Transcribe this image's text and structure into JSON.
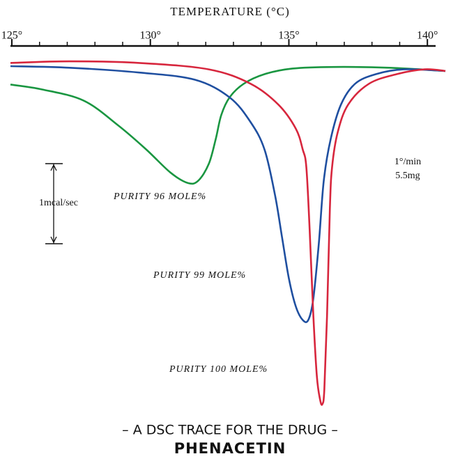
{
  "chart_data": {
    "type": "line",
    "title": "TEMPERATURE (°C)",
    "subtitle": "– A DSC TRACE FOR THE DRUG –",
    "drug": "PHENACETIN",
    "conditions": [
      "1°/min",
      "5.5mg"
    ],
    "scale_bar": {
      "label": "1mcal/sec",
      "value": 1
    },
    "xlim": [
      124.95,
      140.8
    ],
    "ylim": [
      -4.4,
      0.2
    ],
    "xticks": [
      {
        "value": 125,
        "label": "125°"
      },
      {
        "value": 130,
        "label": "130°"
      },
      {
        "value": 135,
        "label": "135°"
      },
      {
        "value": 140,
        "label": "140°"
      }
    ],
    "xminorticks": [
      126,
      127,
      128,
      129,
      131,
      132,
      133,
      134,
      136,
      137,
      138,
      139
    ],
    "series": [
      {
        "name": "PURITY 96 MOLE%",
        "color": "#1a9641",
        "x": [
          124.95,
          126.08,
          127.59,
          128.84,
          129.85,
          130.73,
          131.36,
          131.73,
          132.11,
          132.36,
          132.56,
          132.86,
          133.37,
          134.12,
          135.13,
          136.63,
          138.64,
          140.65
        ],
        "values": [
          -0.23,
          -0.29,
          -0.43,
          -0.74,
          -1.04,
          -1.33,
          -1.46,
          -1.43,
          -1.22,
          -0.91,
          -0.61,
          -0.39,
          -0.22,
          -0.1,
          -0.03,
          -0.01,
          -0.02,
          -0.06
        ]
      },
      {
        "name": "PURITY 99 MOLE%",
        "color": "#1f4fa0",
        "x": [
          124.95,
          127.09,
          129.6,
          131.61,
          132.86,
          133.62,
          134.12,
          134.5,
          134.75,
          135.0,
          135.25,
          135.5,
          135.7,
          135.88,
          136.08,
          136.26,
          136.51,
          136.88,
          137.39,
          138.14,
          139.15,
          140.65
        ],
        "values": [
          0,
          -0.02,
          -0.08,
          -0.17,
          -0.39,
          -0.7,
          -1.04,
          -1.61,
          -2.13,
          -2.65,
          -3.0,
          -3.17,
          -3.17,
          -2.91,
          -2.22,
          -1.43,
          -0.91,
          -0.48,
          -0.22,
          -0.1,
          -0.04,
          -0.06
        ]
      },
      {
        "name": "PURITY 100 MOLE%",
        "color": "#d7263d",
        "x": [
          124.95,
          127.09,
          129.6,
          132.11,
          133.62,
          134.62,
          135.25,
          135.5,
          135.63,
          135.75,
          135.88,
          136.01,
          136.13,
          136.21,
          136.28,
          136.38,
          136.48,
          136.56,
          136.76,
          137.14,
          137.89,
          138.89,
          139.9,
          140.65
        ],
        "values": [
          0.04,
          0.06,
          0.04,
          -0.04,
          -0.22,
          -0.48,
          -0.78,
          -1.04,
          -1.26,
          -2.04,
          -3.09,
          -3.87,
          -4.17,
          -4.22,
          -4.04,
          -3.09,
          -1.78,
          -1.26,
          -0.83,
          -0.48,
          -0.22,
          -0.1,
          -0.04,
          -0.06
        ]
      }
    ]
  }
}
